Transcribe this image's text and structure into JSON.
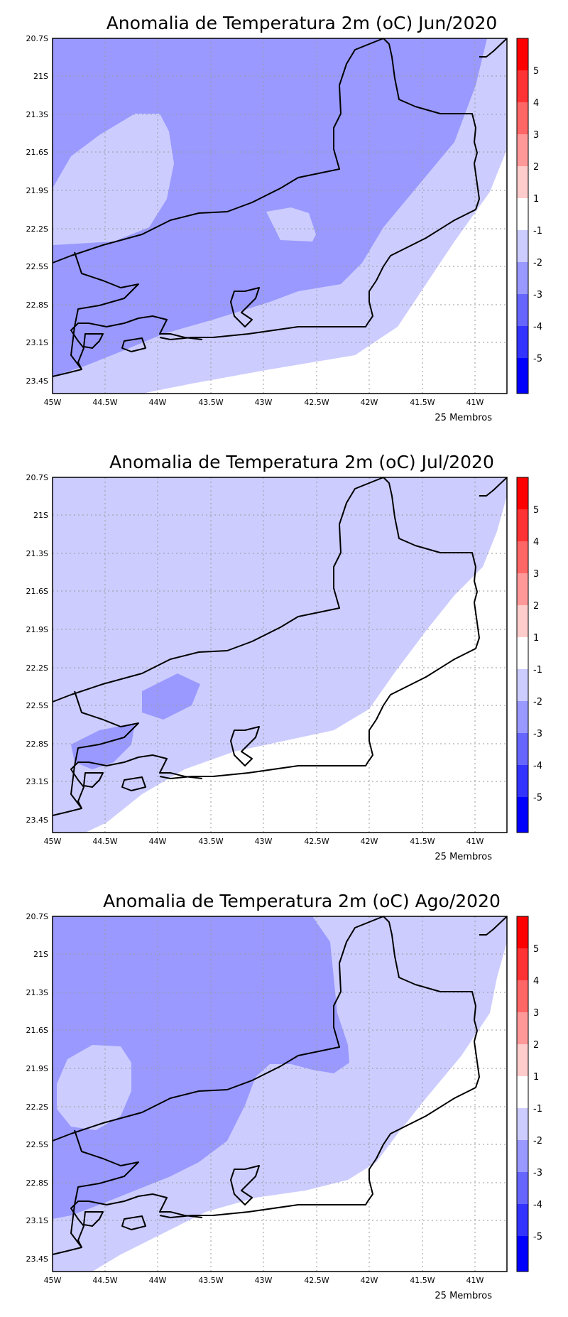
{
  "figure": "temperature anomaly forecast maps",
  "colors": {
    "land_bg": "#ffffff",
    "neg_1_2": "#ccccff",
    "neg_2_3": "#9999ff",
    "neg_3_4": "#6666ff",
    "neg_4_5": "#3333ff",
    "neg_5": "#0000ff",
    "pos_1_2": "#ffcccc",
    "pos_2_3": "#ff9999",
    "pos_3_4": "#ff6666",
    "pos_4_5": "#ff3333",
    "pos_5": "#ff0000"
  },
  "axes": {
    "lat_labels": [
      "20.7S",
      "21S",
      "21.3S",
      "21.6S",
      "21.9S",
      "22.2S",
      "22.5S",
      "22.8S",
      "23.1S",
      "23.4S"
    ],
    "lon_labels": [
      "45W",
      "44.5W",
      "44W",
      "43.5W",
      "43W",
      "42.5W",
      "42W",
      "41.5W",
      "41W"
    ]
  },
  "colorbar": {
    "labels": [
      "5",
      "4",
      "3",
      "2",
      "1",
      "-1",
      "-2",
      "-3",
      "-4",
      "-5"
    ],
    "segment_colors": [
      "#ff0000",
      "#ff3333",
      "#ff6666",
      "#ff9999",
      "#ffcccc",
      "#ffffff",
      "#ccccff",
      "#9999ff",
      "#6666ff",
      "#3333ff",
      "#0000ff"
    ]
  },
  "panels": [
    {
      "title": "Anomalia de Temperatura 2m (oC) Jun/2020",
      "members": "25 Membros",
      "dominant_class": "-2 to -3"
    },
    {
      "title": "Anomalia de Temperatura 2m (oC) Jul/2020",
      "members": "25 Membros",
      "dominant_class": "-1 to -2"
    },
    {
      "title": "Anomalia de Temperatura 2m (oC) Ago/2020",
      "members": "25 Membros",
      "dominant_class": "-2 to -3"
    }
  ]
}
